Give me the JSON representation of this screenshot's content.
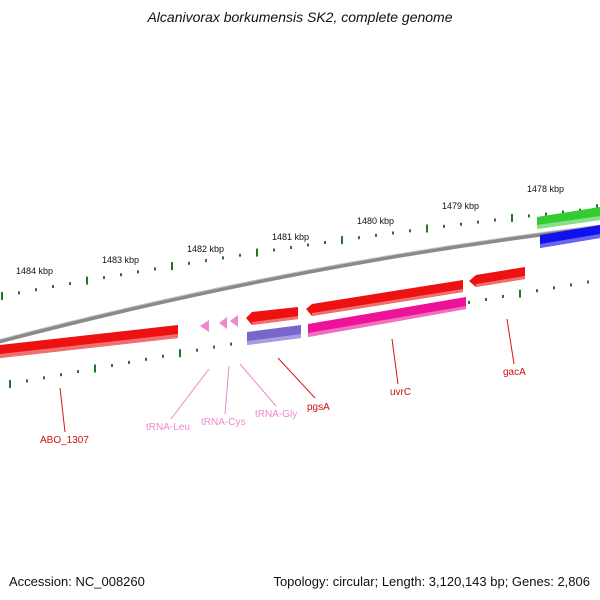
{
  "title": "Alcanivorax borkumensis SK2, complete genome",
  "footer": {
    "accession": "Accession: NC_008260",
    "summary": "Topology: circular; Length: 3,120,143 bp; Genes: 2,806"
  },
  "scale_labels": [
    "1484 kbp",
    "1483 kbp",
    "1482 kbp",
    "1481 kbp",
    "1480 kbp",
    "1479 kbp",
    "1478 kbp"
  ],
  "gene_labels": {
    "abo": "ABO_1307",
    "trna_leu": "tRNA-Leu",
    "trna_cys": "tRNA-Cys",
    "trna_gly": "tRNA-Gly",
    "pgsa": "pgsA",
    "uvrc": "uvrC",
    "gaca": "gacA"
  },
  "colors": {
    "gene_red": "#ee1111",
    "trna_pink": "#ee88cc",
    "rrna_magenta": "#ee1199",
    "feature_purple": "#7766cc",
    "feature_green": "#33cc33",
    "feature_blue": "#1111ee",
    "tick_green": "#227722",
    "backbone": "#8a8a8a"
  }
}
